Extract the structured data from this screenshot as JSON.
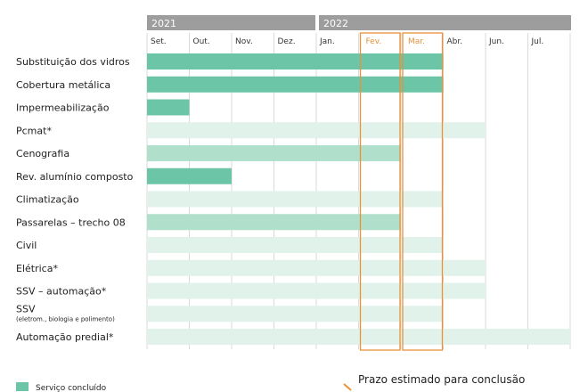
{
  "chart_data": {
    "type": "gantt",
    "years": [
      {
        "label": "2021",
        "start_month": 0,
        "end_month": 4
      },
      {
        "label": "2022",
        "start_month": 4,
        "end_month": 10
      }
    ],
    "months": [
      "Set.",
      "Out.",
      "Nov.",
      "Dez.",
      "Jan.",
      "Fev.",
      "Mar.",
      "Abr.",
      "Jun.",
      "Jul."
    ],
    "highlight_months": [
      5,
      6
    ],
    "tasks": [
      {
        "name": "Substituição dos vidros",
        "done": [
          0,
          7
        ]
      },
      {
        "name": "Cobertura metálica",
        "done": [
          0,
          7
        ]
      },
      {
        "name": "Impermeabilização",
        "done": [
          0,
          1
        ]
      },
      {
        "name": "Pcmat*",
        "planned": [
          0,
          8
        ]
      },
      {
        "name": "Cenografia",
        "in_progress": [
          0,
          6
        ]
      },
      {
        "name": "Rev. alumínio composto",
        "done": [
          0,
          2
        ]
      },
      {
        "name": "Climatização",
        "planned": [
          0,
          7
        ]
      },
      {
        "name": "Passarelas – trecho 08",
        "in_progress": [
          0,
          6
        ]
      },
      {
        "name": "Civil",
        "planned": [
          0,
          7
        ]
      },
      {
        "name": "Elétrica*",
        "planned": [
          0,
          8
        ]
      },
      {
        "name": "SSV – automação*",
        "planned": [
          0,
          8
        ]
      },
      {
        "name": "SSV",
        "sub": "(eletrom., biologia e polimento)",
        "planned": [
          0,
          7
        ]
      },
      {
        "name": "Automação predial*",
        "planned": [
          0,
          10
        ]
      }
    ],
    "legend": [
      {
        "label": "Serviço concluído",
        "color": "#6cc5a6"
      }
    ],
    "note": "Prazo estimado para conclusão",
    "colors": {
      "done": "#6cc5a6",
      "in_progress": "#b0dfcc",
      "planned": "#e1f2ea",
      "highlight": "#e8923a",
      "year_bar": "#9d9d9d"
    }
  }
}
